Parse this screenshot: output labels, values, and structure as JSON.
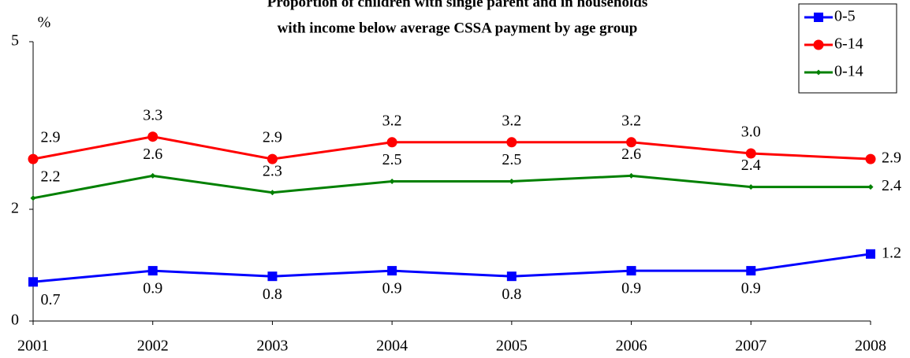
{
  "chart_data": {
    "type": "line",
    "title": [
      "Proportion of children with single parent and in households",
      "with income below average CSSA payment by age group"
    ],
    "y_label": "%",
    "categories": [
      "2001",
      "2002",
      "2003",
      "2004",
      "2005",
      "2006",
      "2007",
      "2008"
    ],
    "series": [
      {
        "name": "0-5",
        "color": "#0000ff",
        "marker": "square",
        "values": [
          0.7,
          0.9,
          0.8,
          0.9,
          0.8,
          0.9,
          0.9,
          1.2
        ]
      },
      {
        "name": "6-14",
        "color": "#ff0000",
        "marker": "circle",
        "values": [
          2.9,
          3.3,
          2.9,
          3.2,
          3.2,
          3.2,
          3.0,
          2.9
        ],
        "value_labels": [
          "2.9",
          "3.3",
          "2.9",
          "3.2",
          "3.2",
          "3.2",
          "3.0",
          "2.9"
        ]
      },
      {
        "name": "0-14",
        "color": "#008000",
        "marker": "diamond",
        "values": [
          2.2,
          2.6,
          2.3,
          2.5,
          2.5,
          2.6,
          2.4,
          2.4
        ]
      }
    ],
    "ylim": [
      0,
      5
    ],
    "yticks": [
      0,
      2,
      5
    ],
    "legend": "upper right"
  }
}
